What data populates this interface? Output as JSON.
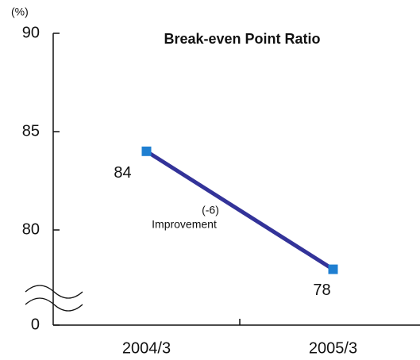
{
  "chart_data": {
    "type": "line",
    "title": "Break-even Point Ratio",
    "y_unit": "(%)",
    "categories": [
      "2004/3",
      "2005/3"
    ],
    "series": [
      {
        "name": "Break-even Point Ratio",
        "color": "#333399",
        "marker_color": "#1f7fd1",
        "values": [
          84,
          78
        ]
      }
    ],
    "ylim": [
      0,
      90
    ],
    "yticks": [
      0,
      80,
      85,
      90
    ],
    "axis_break": true,
    "annotations": [
      "(-6)",
      "Improvement"
    ]
  }
}
